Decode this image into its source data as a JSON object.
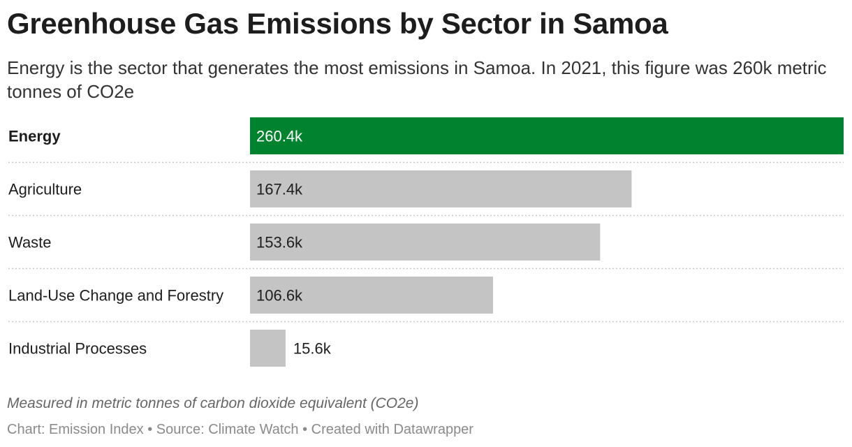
{
  "header": {
    "title": "Greenhouse Gas Emissions by Sector in Samoa",
    "subtitle": "Energy is the sector that generates the most emissions in Samoa. In 2021, this figure was 260k metric tonnes of CO2e"
  },
  "chart_data": {
    "type": "bar",
    "orientation": "horizontal",
    "categories": [
      "Energy",
      "Agriculture",
      "Waste",
      "Land-Use Change and Forestry",
      "Industrial Processes"
    ],
    "values": [
      260.4,
      167.4,
      153.6,
      106.6,
      15.6
    ],
    "value_labels": [
      "260.4k",
      "167.4k",
      "153.6k",
      "106.6k",
      "15.6k"
    ],
    "highlight_index": 0,
    "highlight_color": "#00822f",
    "bar_color": "#c4c4c4",
    "xlim": [
      0,
      260.4
    ],
    "grid": false
  },
  "notes": {
    "measure": "Measured in metric tonnes of carbon dioxide equivalent (CO2e)",
    "credit": "Chart: Emission Index • Source: Climate Watch • Created with Datawrapper"
  }
}
